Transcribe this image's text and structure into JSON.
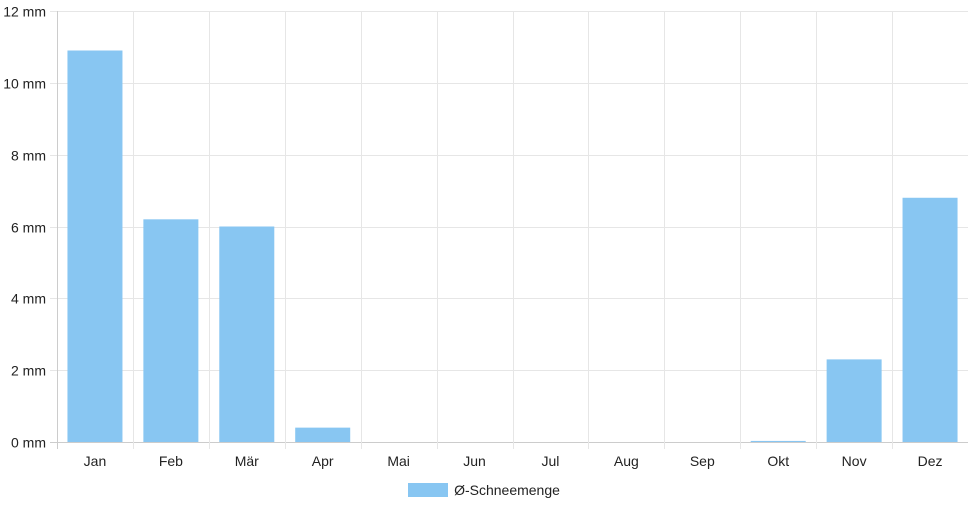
{
  "chart_data": {
    "type": "bar",
    "categories": [
      "Jan",
      "Feb",
      "Mär",
      "Apr",
      "Mai",
      "Jun",
      "Jul",
      "Aug",
      "Sep",
      "Okt",
      "Nov",
      "Dez"
    ],
    "series": [
      {
        "name": "Ø-Schneemenge",
        "values": [
          10.9,
          6.2,
          6.0,
          0.4,
          0,
          0,
          0,
          0,
          0,
          0.03,
          2.3,
          6.8
        ]
      }
    ],
    "ylim": [
      0,
      12
    ],
    "yticks": [
      0,
      2,
      4,
      6,
      8,
      10,
      12
    ],
    "ytick_labels": [
      "0 mm",
      "2 mm",
      "4 mm",
      "6 mm",
      "8 mm",
      "10 mm",
      "12 mm"
    ],
    "grid": true,
    "legend_position": "bottom",
    "colors": {
      "bar": "#88c6f2",
      "grid": "#e6e6e6",
      "axis": "#cccccc",
      "text": "#222222"
    }
  }
}
